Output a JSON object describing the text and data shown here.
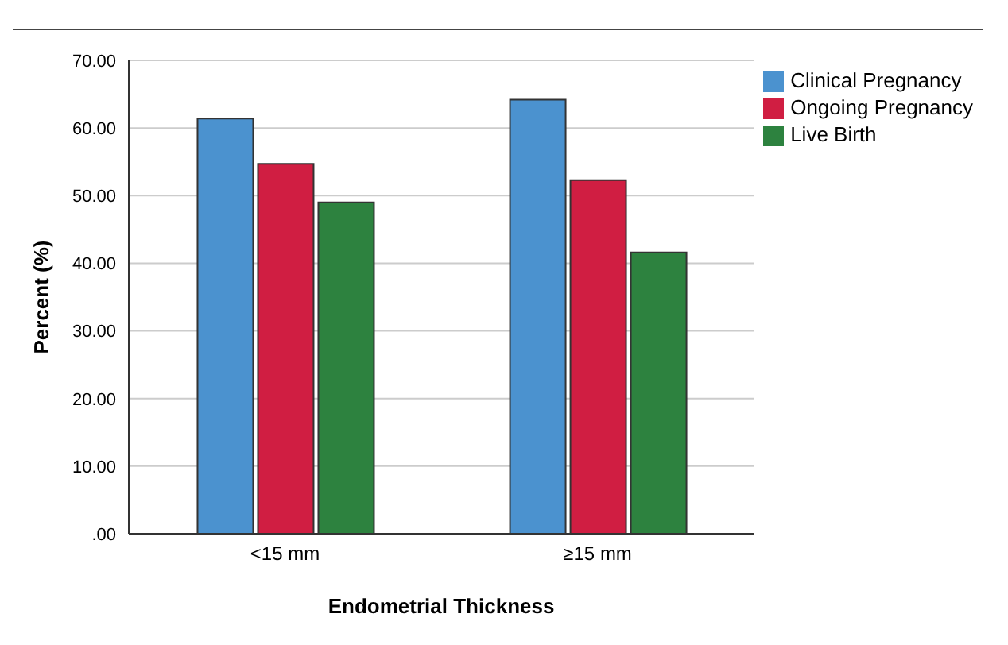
{
  "chart_data": {
    "type": "bar",
    "xlabel": "Endometrial Thickness",
    "ylabel": "Percent (%)",
    "categories": [
      "<15 mm",
      "≥15 mm"
    ],
    "series": [
      {
        "name": "Clinical Pregnancy",
        "color": "#4b92cf",
        "values": [
          61.4,
          64.2
        ]
      },
      {
        "name": "Ongoing Pregnancy",
        "color": "#d01e42",
        "values": [
          54.7,
          52.3
        ]
      },
      {
        "name": "Live Birth",
        "color": "#2d823f",
        "values": [
          49.0,
          41.6
        ]
      }
    ],
    "ylim": [
      0,
      70
    ],
    "yticks": [
      {
        "value": 0,
        "label": ".00"
      },
      {
        "value": 10,
        "label": "10.00"
      },
      {
        "value": 20,
        "label": "20.00"
      },
      {
        "value": 30,
        "label": "30.00"
      },
      {
        "value": 40,
        "label": "40.00"
      },
      {
        "value": 50,
        "label": "50.00"
      },
      {
        "value": 60,
        "label": "60.00"
      },
      {
        "value": 70,
        "label": "70.00"
      }
    ],
    "grid": "y",
    "legend": "top right"
  }
}
